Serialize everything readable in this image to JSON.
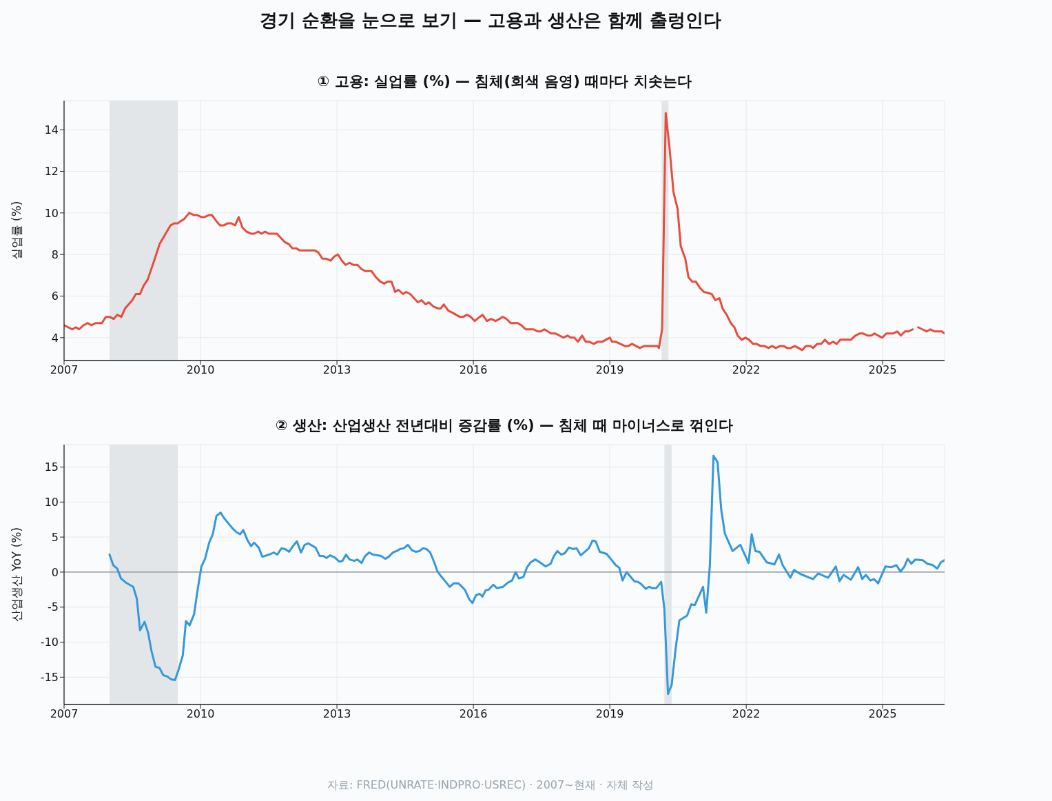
{
  "chart_data": [
    {
      "type": "line",
      "title": "경기 순환을 눈으로 보기 — 고용과 생산은 함께 출렁인다",
      "subtitle": "① 고용: 실업률 (%) — 침체(회색 음영) 때마다 치솟는다",
      "ylabel": "실업률 (%)",
      "x": [
        2007.0,
        2007.18,
        2007.26,
        2007.33,
        2007.43,
        2007.52,
        2007.6,
        2007.7,
        2007.83,
        2007.92,
        2008.0,
        2008.09,
        2008.17,
        2008.26,
        2008.34,
        2008.5,
        2008.58,
        2008.67,
        2008.75,
        2008.84,
        2008.98,
        2009.1,
        2009.18,
        2009.26,
        2009.34,
        2009.42,
        2009.5,
        2009.56,
        2009.64,
        2009.75,
        2009.85,
        2009.92,
        2010.02,
        2010.09,
        2010.19,
        2010.25,
        2010.35,
        2010.43,
        2010.51,
        2010.6,
        2010.68,
        2010.76,
        2010.84,
        2010.92,
        2011.01,
        2011.12,
        2011.18,
        2011.27,
        2011.34,
        2011.42,
        2011.5,
        2011.68,
        2011.85,
        2011.94,
        2012.02,
        2012.1,
        2012.18,
        2012.51,
        2012.59,
        2012.68,
        2012.76,
        2012.86,
        2012.94,
        2013.02,
        2013.11,
        2013.19,
        2013.28,
        2013.36,
        2013.45,
        2013.54,
        2013.62,
        2013.76,
        2013.86,
        2013.95,
        2014.04,
        2014.12,
        2014.2,
        2014.28,
        2014.35,
        2014.45,
        2014.52,
        2014.61,
        2014.78,
        2014.86,
        2014.95,
        2015.02,
        2015.12,
        2015.23,
        2015.28,
        2015.35,
        2015.45,
        2015.54,
        2015.7,
        2015.78,
        2015.86,
        2015.94,
        2016.03,
        2016.2,
        2016.3,
        2016.39,
        2016.49,
        2016.65,
        2016.73,
        2016.82,
        2016.98,
        2017.05,
        2017.15,
        2017.32,
        2017.42,
        2017.48,
        2017.56,
        2017.71,
        2017.81,
        2017.98,
        2018.07,
        2018.14,
        2018.22,
        2018.3,
        2018.39,
        2018.47,
        2018.55,
        2018.65,
        2018.73,
        2018.83,
        2019.0,
        2019.05,
        2019.13,
        2019.23,
        2019.33,
        2019.41,
        2019.49,
        2019.66,
        2019.76,
        2020.05,
        2020.08,
        2020.15,
        2020.23,
        2020.31,
        2020.4,
        2020.49,
        2020.56,
        2020.66,
        2020.73,
        2020.81,
        2020.89,
        2020.98,
        2021.07,
        2021.24,
        2021.32,
        2021.41,
        2021.48,
        2021.57,
        2021.66,
        2021.74,
        2021.81,
        2021.9,
        2021.98,
        2022.06,
        2022.15,
        2022.23,
        2022.31,
        2022.4,
        2022.49,
        2022.57,
        2022.65,
        2022.75,
        2022.82,
        2022.9,
        2022.98,
        2023.07,
        2023.23,
        2023.31,
        2023.41,
        2023.47,
        2023.56,
        2023.65,
        2023.73,
        2023.82,
        2023.91,
        2023.99,
        2024.07,
        2024.3,
        2024.4,
        2024.49,
        2024.57,
        2024.67,
        2024.75,
        2024.82,
        2024.9,
        2024.99,
        2025.08,
        2025.22,
        2025.32,
        2025.4,
        2025.49,
        2025.57,
        2025.66,
        2025.72,
        2025.78,
        2025.87,
        2025.97,
        2026.05,
        2026.13,
        2026.3,
        2026.36
      ],
      "series": [
        {
          "color": "#e74c3c",
          "values": [
            4.6,
            4.4,
            4.5,
            4.4,
            4.6,
            4.7,
            4.6,
            4.7,
            4.7,
            5.0,
            5.0,
            4.9,
            5.1,
            5.0,
            5.4,
            5.8,
            6.1,
            6.1,
            6.5,
            6.8,
            7.7,
            8.5,
            8.8,
            9.1,
            9.4,
            9.5,
            9.5,
            9.6,
            9.7,
            10.0,
            9.9,
            9.9,
            9.8,
            9.8,
            9.9,
            9.9,
            9.6,
            9.4,
            9.4,
            9.5,
            9.5,
            9.4,
            9.8,
            9.3,
            9.1,
            9.0,
            9.0,
            9.1,
            9.0,
            9.1,
            9.0,
            9.0,
            8.6,
            8.5,
            8.3,
            8.3,
            8.2,
            8.2,
            8.1,
            7.8,
            7.8,
            7.7,
            7.9,
            8.0,
            7.7,
            7.5,
            7.6,
            7.5,
            7.5,
            7.3,
            7.2,
            7.2,
            6.9,
            6.7,
            6.6,
            6.7,
            6.7,
            6.2,
            6.3,
            6.1,
            6.2,
            6.1,
            5.7,
            5.8,
            5.6,
            5.7,
            5.5,
            5.4,
            5.4,
            5.6,
            5.3,
            5.2,
            5.0,
            5.0,
            5.1,
            5.0,
            4.8,
            5.1,
            4.8,
            4.9,
            4.8,
            5.0,
            4.9,
            4.7,
            4.7,
            4.6,
            4.4,
            4.4,
            4.3,
            4.3,
            4.4,
            4.2,
            4.2,
            4.0,
            4.1,
            4.0,
            4.0,
            3.8,
            4.1,
            3.8,
            3.8,
            3.7,
            3.8,
            3.8,
            4.0,
            3.8,
            3.8,
            3.7,
            3.6,
            3.6,
            3.7,
            3.5,
            3.6,
            3.6,
            3.5,
            4.4,
            14.8,
            13.2,
            11.0,
            10.2,
            8.4,
            7.8,
            6.9,
            6.7,
            6.7,
            6.4,
            6.2,
            6.1,
            5.8,
            5.9,
            5.4,
            5.1,
            4.7,
            4.5,
            4.1,
            3.9,
            4.0,
            3.9,
            3.7,
            3.7,
            3.6,
            3.6,
            3.5,
            3.6,
            3.5,
            3.6,
            3.6,
            3.5,
            3.5,
            3.6,
            3.4,
            3.6,
            3.6,
            3.5,
            3.7,
            3.7,
            3.9,
            3.7,
            3.8,
            3.7,
            3.9,
            3.9,
            4.1,
            4.2,
            4.2,
            4.1,
            4.1,
            4.2,
            4.1,
            4.0,
            4.2,
            4.2,
            4.3,
            4.1,
            4.3,
            4.3,
            4.4,
            null,
            4.5,
            4.4,
            4.3,
            4.4,
            4.3,
            4.3,
            4.2
          ]
        }
      ],
      "xlim": [
        2007,
        2026.36
      ],
      "xticks": [
        2007,
        2010,
        2013,
        2016,
        2019,
        2022,
        2025
      ],
      "ylim": [
        2.9,
        15.4
      ],
      "yticks": [
        4,
        6,
        8,
        10,
        12,
        14
      ],
      "grid": true,
      "bands": [
        {
          "axis": "x",
          "from": 2008.0,
          "to": 2009.5,
          "color": "#e3e6e8"
        },
        {
          "axis": "x",
          "from": 2020.14,
          "to": 2020.29,
          "color": "#e3e6e8"
        }
      ]
    },
    {
      "type": "line",
      "title": "② 생산: 산업생산 전년대비 증감률 (%) — 침체 때 마이너스로 꺾인다",
      "ylabel": "산업생산 YoY (%)",
      "x": [
        2008.0,
        2008.08,
        2008.17,
        2008.25,
        2008.36,
        2008.52,
        2008.6,
        2008.67,
        2008.77,
        2008.85,
        2008.92,
        2009.01,
        2009.1,
        2009.18,
        2009.27,
        2009.35,
        2009.44,
        2009.51,
        2009.61,
        2009.68,
        2009.76,
        2009.86,
        2009.93,
        2010.02,
        2010.1,
        2010.19,
        2010.27,
        2010.35,
        2010.44,
        2010.52,
        2010.62,
        2010.71,
        2010.79,
        2010.87,
        2010.94,
        2011.03,
        2011.11,
        2011.18,
        2011.28,
        2011.36,
        2011.51,
        2011.61,
        2011.69,
        2011.78,
        2011.86,
        2011.95,
        2012.03,
        2012.12,
        2012.21,
        2012.29,
        2012.37,
        2012.45,
        2012.53,
        2012.62,
        2012.7,
        2012.77,
        2012.85,
        2012.95,
        2013.05,
        2013.12,
        2013.2,
        2013.28,
        2013.38,
        2013.45,
        2013.54,
        2013.62,
        2013.71,
        2013.79,
        2013.89,
        2013.97,
        2014.06,
        2014.14,
        2014.23,
        2014.31,
        2014.39,
        2014.47,
        2014.56,
        2014.65,
        2014.73,
        2014.81,
        2014.89,
        2014.97,
        2015.05,
        2015.14,
        2015.21,
        2015.29,
        2015.38,
        2015.48,
        2015.57,
        2015.67,
        2015.75,
        2015.82,
        2015.91,
        2015.98,
        2016.06,
        2016.14,
        2016.2,
        2016.27,
        2016.34,
        2016.44,
        2016.52,
        2016.65,
        2016.76,
        2016.85,
        2016.93,
        2017.0,
        2017.1,
        2017.18,
        2017.26,
        2017.36,
        2017.44,
        2017.59,
        2017.7,
        2017.77,
        2017.85,
        2017.93,
        2018.01,
        2018.1,
        2018.19,
        2018.27,
        2018.36,
        2018.47,
        2018.54,
        2018.62,
        2018.69,
        2018.78,
        2018.93,
        2019.03,
        2019.13,
        2019.21,
        2019.28,
        2019.37,
        2019.46,
        2019.54,
        2019.62,
        2019.69,
        2019.79,
        2019.86,
        2019.95,
        2020.02,
        2020.13,
        2020.2,
        2020.28,
        2020.36,
        2020.45,
        2020.53,
        2020.7,
        2020.79,
        2020.87,
        2021.05,
        2021.12,
        2021.2,
        2021.28,
        2021.37,
        2021.45,
        2021.53,
        2021.7,
        2021.87,
        2022.05,
        2022.12,
        2022.2,
        2022.29,
        2022.45,
        2022.62,
        2022.72,
        2022.8,
        2022.97,
        2023.05,
        2023.2,
        2023.47,
        2023.58,
        2023.8,
        2023.97,
        2024.05,
        2024.14,
        2024.3,
        2024.46,
        2024.55,
        2024.63,
        2024.73,
        2024.81,
        2024.9,
        2025.06,
        2025.19,
        2025.3,
        2025.39,
        2025.47,
        2025.55,
        2025.63,
        2025.72,
        2025.88,
        2025.98,
        2026.1,
        2026.2,
        2026.28,
        2026.36
      ],
      "series": [
        {
          "color": "#3498db",
          "values": [
            2.5,
            1.0,
            0.5,
            -0.9,
            -1.5,
            -2.1,
            -3.8,
            -8.3,
            -7.1,
            -8.7,
            -11.2,
            -13.5,
            -13.7,
            -14.7,
            -14.9,
            -15.3,
            -15.4,
            -14.1,
            -11.9,
            -7.0,
            -7.6,
            -6.0,
            -2.8,
            0.8,
            1.9,
            4.2,
            5.4,
            8.0,
            8.5,
            7.7,
            6.9,
            6.2,
            5.7,
            5.4,
            6.0,
            4.6,
            3.7,
            4.2,
            3.5,
            2.2,
            2.5,
            2.8,
            2.5,
            3.4,
            3.3,
            2.9,
            3.7,
            4.4,
            2.8,
            3.9,
            4.1,
            3.8,
            3.5,
            2.3,
            2.3,
            2.0,
            2.4,
            2.1,
            1.5,
            1.6,
            2.5,
            1.8,
            1.6,
            1.8,
            1.3,
            2.3,
            2.8,
            2.5,
            2.4,
            2.3,
            1.9,
            2.2,
            2.8,
            3.0,
            3.3,
            3.4,
            3.9,
            3.1,
            2.9,
            3.0,
            3.4,
            3.3,
            2.8,
            1.4,
            0.1,
            -0.6,
            -1.3,
            -2.1,
            -1.6,
            -1.6,
            -2.1,
            -2.6,
            -3.9,
            -4.4,
            -3.3,
            -3.1,
            -3.5,
            -2.6,
            -2.5,
            -1.8,
            -2.3,
            -2.1,
            -1.5,
            -1.2,
            0,
            -0.9,
            -0.7,
            0.7,
            1.4,
            1.8,
            1.5,
            0.8,
            1.2,
            2.3,
            3.0,
            2.5,
            2.7,
            3.5,
            3.3,
            3.4,
            2.4,
            3.0,
            3.4,
            4.5,
            4.4,
            2.9,
            2.6,
            1.8,
            1.0,
            0.6,
            -1.2,
            0,
            -0.7,
            -1.3,
            -1.4,
            -1.7,
            -2.4,
            -2.1,
            -2.3,
            -2.3,
            -1.4,
            -5.3,
            -17.4,
            -16.1,
            -10.8,
            -6.9,
            -6.2,
            -4.6,
            -4.7,
            -2.1,
            -5.8,
            1.0,
            16.6,
            15.7,
            8.9,
            5.5,
            3.0,
            3.9,
            1.3,
            5.4,
            3.0,
            2.9,
            1.4,
            1.1,
            2.5,
            1.0,
            -0.8,
            0.3,
            -0.3,
            -1.0,
            -0.2,
            -0.8,
            0.8,
            -1.3,
            -0.4,
            -1.1,
            0.7,
            -1.0,
            -0.4,
            -1.2,
            -1.0,
            -1.6,
            0.8,
            0.7,
            1.0,
            0.1,
            0.7,
            1.9,
            1.2,
            1.8,
            1.7,
            1.2,
            1.0,
            0.5,
            1.4,
            1.7
          ]
        }
      ],
      "xlim": [
        2007,
        2026.36
      ],
      "xticks": [
        2007,
        2010,
        2013,
        2016,
        2019,
        2022,
        2025
      ],
      "ylim": [
        -18.9,
        18.2
      ],
      "yticks": [
        -15,
        -10,
        -5,
        0,
        5,
        10,
        15
      ],
      "grid": true,
      "ref_lines": [
        {
          "axis": "y",
          "value": 0,
          "color": "#888888"
        }
      ],
      "bands": [
        {
          "axis": "x",
          "from": 2008.0,
          "to": 2009.5,
          "color": "#e3e6e8"
        },
        {
          "axis": "x",
          "from": 2020.2,
          "to": 2020.36,
          "color": "#e3e6e8"
        }
      ],
      "annotations": [
        "자료: FRED(UNRATE·INDPRO·USREC) · 2007~현재 · 자체 작성"
      ]
    }
  ]
}
